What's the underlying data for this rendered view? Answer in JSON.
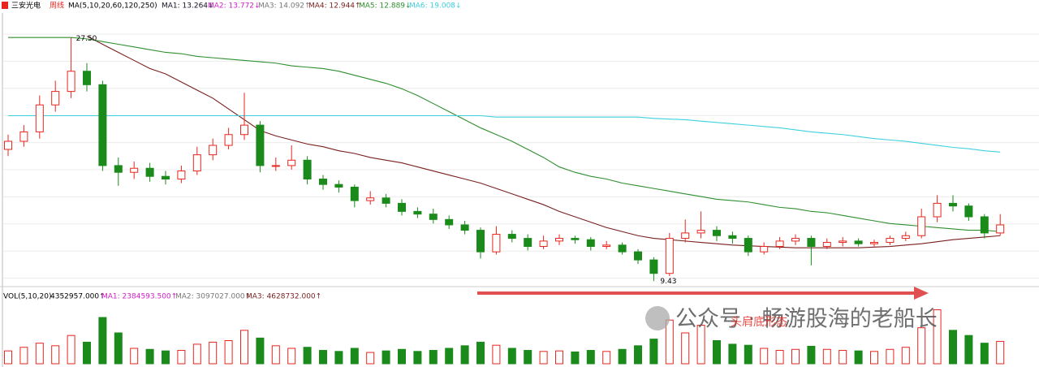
{
  "chart_data": {
    "type": "candlestick",
    "stock_name": "三安光电",
    "period": "周线",
    "ma_header": "MA(5,10,20,60,120,250)",
    "ma_labels": [
      "MA1: 13.264↓",
      "MA2: 13.772↓",
      "MA3: 14.092↑",
      "MA4: 12.944↑",
      "MA5: 12.889↓",
      "MA6: 19.008↓"
    ],
    "vol_header": "VOL(5,10,20)",
    "vol_labels": [
      "4352957.000↑",
      "MA1: 2384593.500↑",
      "MA2: 3097027.000↑",
      "MA3: 4628732.000↑"
    ],
    "annotations": [
      "27.50",
      "9.43"
    ],
    "watermark": "公众号 · 畅游股海的老船长",
    "pattern_label": "头肩底形态",
    "ylim": [
      9.2,
      29.2
    ],
    "open": [
      19.2,
      19.8,
      20.5,
      22.5,
      23.5,
      25.0,
      24.0,
      18.0,
      17.5,
      17.8,
      17.2,
      17.0,
      17.6,
      18.8,
      19.5,
      20.3,
      21.0,
      18.0,
      18.0,
      18.4,
      17.0,
      16.6,
      16.4,
      15.4,
      15.6,
      15.2,
      14.6,
      14.4,
      14.0,
      13.6,
      13.2,
      11.6,
      12.9,
      12.6,
      12.0,
      12.4,
      12.6,
      12.5,
      12.0,
      12.1,
      11.6,
      11.0,
      10.0,
      12.6,
      13.0,
      13.2,
      12.8,
      12.6,
      11.6,
      12.0,
      12.4,
      12.6,
      12.0,
      12.3,
      12.4,
      12.2,
      12.3,
      12.6,
      12.8,
      14.2,
      15.2,
      15.0,
      14.2,
      13.0
    ],
    "high": [
      20.3,
      21.0,
      23.2,
      24.3,
      27.5,
      25.6,
      24.3,
      18.6,
      18.3,
      18.2,
      17.6,
      18.0,
      19.4,
      20.0,
      20.8,
      23.4,
      21.3,
      18.6,
      19.5,
      18.7,
      17.3,
      16.9,
      16.6,
      16.1,
      15.9,
      15.5,
      14.9,
      14.8,
      14.3,
      13.9,
      13.4,
      13.5,
      13.2,
      12.9,
      12.8,
      12.9,
      12.8,
      12.7,
      12.4,
      12.3,
      11.8,
      11.2,
      13.0,
      14.0,
      14.6,
      13.5,
      13.1,
      12.8,
      12.3,
      12.7,
      12.9,
      12.8,
      12.6,
      12.7,
      12.6,
      12.5,
      12.8,
      13.1,
      14.8,
      15.8,
      15.8,
      15.2,
      14.4,
      14.4
    ],
    "low": [
      18.7,
      19.4,
      20.0,
      22.0,
      23.0,
      23.5,
      17.6,
      16.5,
      17.0,
      16.8,
      16.6,
      16.7,
      17.3,
      18.4,
      19.2,
      19.9,
      17.5,
      17.6,
      17.7,
      16.6,
      16.2,
      16.0,
      14.9,
      15.1,
      14.9,
      14.3,
      14.1,
      13.7,
      13.3,
      12.9,
      11.1,
      11.4,
      12.3,
      11.7,
      11.8,
      12.1,
      12.2,
      11.7,
      11.8,
      11.4,
      10.7,
      9.43,
      9.8,
      12.3,
      12.6,
      12.4,
      12.2,
      11.3,
      11.4,
      11.8,
      12.1,
      10.6,
      11.8,
      12.0,
      12.0,
      12.0,
      12.1,
      12.4,
      12.6,
      13.8,
      14.6,
      13.9,
      12.6,
      12.8
    ],
    "close": [
      19.8,
      20.5,
      22.5,
      23.5,
      25.0,
      24.0,
      18.0,
      17.5,
      17.8,
      17.2,
      17.0,
      17.6,
      18.8,
      19.5,
      20.3,
      21.0,
      18.0,
      18.0,
      18.4,
      17.0,
      16.6,
      16.4,
      15.4,
      15.6,
      15.2,
      14.6,
      14.4,
      14.0,
      13.6,
      13.2,
      11.6,
      12.9,
      12.6,
      12.0,
      12.4,
      12.6,
      12.5,
      12.0,
      12.1,
      11.6,
      11.0,
      10.0,
      12.6,
      13.0,
      13.2,
      12.8,
      12.6,
      11.6,
      12.0,
      12.4,
      12.6,
      12.0,
      12.3,
      12.4,
      12.2,
      12.3,
      12.6,
      12.8,
      14.2,
      15.2,
      15.0,
      14.2,
      13.0,
      13.6
    ],
    "up_color": "#e8251e",
    "down_color": "#1a8a1a",
    "series": [
      {
        "color": "#7a1f1f",
        "values": [
          null,
          null,
          null,
          null,
          null,
          27.6,
          27.0,
          26.4,
          25.8,
          25.2,
          24.8,
          24.2,
          23.6,
          23.0,
          22.2,
          21.4,
          20.6,
          20.2,
          19.9,
          19.6,
          19.4,
          19.1,
          18.9,
          18.6,
          18.4,
          18.2,
          17.9,
          17.6,
          17.3,
          17.0,
          16.7,
          16.3,
          15.9,
          15.5,
          15.1,
          14.6,
          14.2,
          13.8,
          13.4,
          13.1,
          12.8,
          12.6,
          12.5,
          12.4,
          12.3,
          12.2,
          12.1,
          12.05,
          12.0,
          11.95,
          11.9,
          11.9,
          11.9,
          11.9,
          11.9,
          11.95,
          12.0,
          12.1,
          12.2,
          12.35,
          12.5,
          12.6,
          12.7,
          12.8
        ]
      },
      {
        "color": "#2f8f2f",
        "values": [
          27.5,
          27.5,
          27.5,
          27.5,
          27.5,
          27.4,
          27.2,
          27.0,
          26.8,
          26.6,
          26.4,
          26.3,
          26.1,
          26.0,
          25.9,
          25.8,
          25.7,
          25.6,
          25.4,
          25.3,
          25.2,
          25.0,
          24.7,
          24.4,
          24.1,
          23.7,
          23.2,
          22.6,
          22.0,
          21.4,
          20.8,
          20.3,
          19.8,
          19.2,
          18.6,
          17.9,
          17.5,
          17.2,
          17.0,
          16.7,
          16.5,
          16.3,
          16.1,
          15.9,
          15.7,
          15.5,
          15.4,
          15.3,
          15.1,
          14.9,
          14.8,
          14.6,
          14.5,
          14.3,
          14.1,
          13.9,
          13.7,
          13.6,
          13.5,
          13.4,
          13.3,
          13.2,
          13.2,
          13.1
        ]
      },
      {
        "color": "#3fd0e0",
        "values": [
          21.7,
          21.7,
          21.7,
          21.7,
          21.7,
          21.7,
          21.7,
          21.7,
          21.7,
          21.7,
          21.7,
          21.7,
          21.7,
          21.7,
          21.7,
          21.7,
          21.7,
          21.7,
          21.7,
          21.7,
          21.7,
          21.7,
          21.7,
          21.7,
          21.7,
          21.7,
          21.7,
          21.7,
          21.7,
          21.7,
          21.7,
          21.6,
          21.6,
          21.6,
          21.6,
          21.6,
          21.6,
          21.6,
          21.6,
          21.6,
          21.6,
          21.5,
          21.45,
          21.4,
          21.3,
          21.2,
          21.1,
          21.0,
          20.9,
          20.8,
          20.65,
          20.5,
          20.4,
          20.3,
          20.15,
          20.0,
          19.9,
          19.8,
          19.65,
          19.5,
          19.35,
          19.25,
          19.1,
          19.0
        ]
      }
    ],
    "volume": {
      "ylim": [
        0,
        12000000
      ],
      "values": [
        2500000,
        3200000,
        4000000,
        3500000,
        5500000,
        4200000,
        9000000,
        6000000,
        3000000,
        2800000,
        2500000,
        2600000,
        3800000,
        4200000,
        4500000,
        6500000,
        5000000,
        3500000,
        3000000,
        3200000,
        2600000,
        2400000,
        3000000,
        2200000,
        2500000,
        2800000,
        2400000,
        2600000,
        3000000,
        3500000,
        4200000,
        3600000,
        3000000,
        2600000,
        2400000,
        2500000,
        2300000,
        2600000,
        2400000,
        2800000,
        3500000,
        4800000,
        8500000,
        6000000,
        7500000,
        4500000,
        3800000,
        3600000,
        3000000,
        2600000,
        2800000,
        3400000,
        2800000,
        2600000,
        2500000,
        2400000,
        2800000,
        3200000,
        7000000,
        10500000,
        6500000,
        5500000,
        4000000,
        4352957
      ]
    }
  }
}
